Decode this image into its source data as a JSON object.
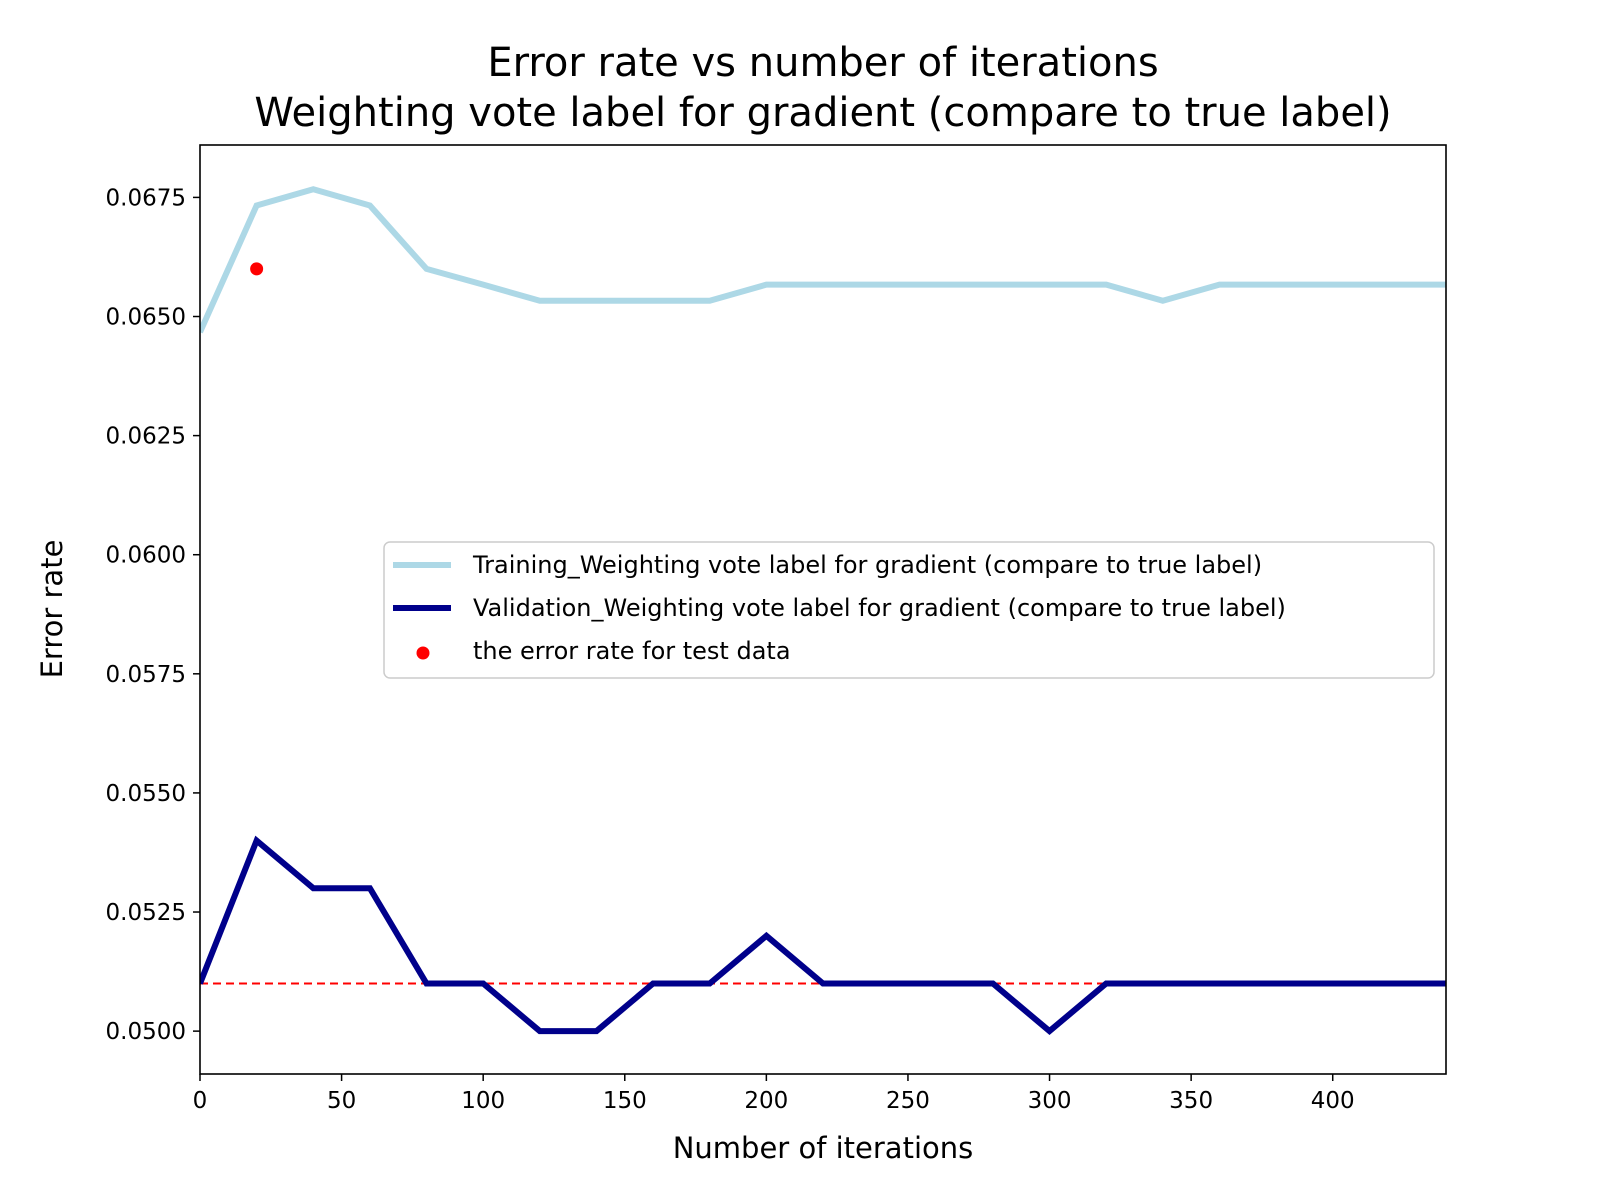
{
  "chart_data": {
    "type": "line",
    "title_line1": "Error rate vs number of iterations",
    "title_line2": "Weighting vote label for gradient (compare to true label)",
    "xlabel": "Number of iterations",
    "ylabel": "Error rate",
    "xlim": [
      0,
      440
    ],
    "ylim": [
      0.0491,
      0.0686
    ],
    "x_ticks": [
      0,
      50,
      100,
      150,
      200,
      250,
      300,
      350,
      400
    ],
    "x_tick_labels": [
      "0",
      "50",
      "100",
      "150",
      "200",
      "250",
      "300",
      "350",
      "400"
    ],
    "y_ticks": [
      0.05,
      0.0525,
      0.055,
      0.0575,
      0.06,
      0.0625,
      0.065,
      0.0675
    ],
    "y_tick_labels": [
      "0.0500",
      "0.0525",
      "0.0550",
      "0.0575",
      "0.0600",
      "0.0625",
      "0.0650",
      "0.0675"
    ],
    "grid": false,
    "legend_position": "center-right",
    "series": [
      {
        "name": "Training_Weighting vote label for gradient (compare to true label)",
        "color": "#add8e6",
        "x": [
          0,
          20,
          40,
          60,
          80,
          100,
          120,
          140,
          160,
          180,
          200,
          220,
          240,
          260,
          280,
          300,
          320,
          340,
          360,
          380,
          400,
          420,
          440
        ],
        "y": [
          0.06467,
          0.06733,
          0.06767,
          0.06733,
          0.066,
          0.06567,
          0.06533,
          0.06533,
          0.06533,
          0.06533,
          0.06567,
          0.06567,
          0.06567,
          0.06567,
          0.06567,
          0.06567,
          0.06567,
          0.06533,
          0.06567,
          0.06567,
          0.06567,
          0.06567,
          0.06567
        ]
      },
      {
        "name": "Validation_Weighting vote label for gradient (compare to true label)",
        "color": "#00008b",
        "x": [
          0,
          20,
          40,
          60,
          80,
          100,
          120,
          140,
          160,
          180,
          200,
          220,
          240,
          260,
          280,
          300,
          320,
          340,
          360,
          380,
          400,
          420,
          440
        ],
        "y": [
          0.051,
          0.054,
          0.053,
          0.053,
          0.051,
          0.051,
          0.05,
          0.05,
          0.051,
          0.051,
          0.052,
          0.051,
          0.051,
          0.051,
          0.051,
          0.05,
          0.051,
          0.051,
          0.051,
          0.051,
          0.051,
          0.051,
          0.051
        ]
      }
    ],
    "test_point": {
      "name": "the error rate for test data",
      "color": "#ff0000",
      "x": 20,
      "y": 0.066
    },
    "reference_line": {
      "y": 0.051,
      "color": "#ff0000",
      "style": "dashed"
    }
  }
}
